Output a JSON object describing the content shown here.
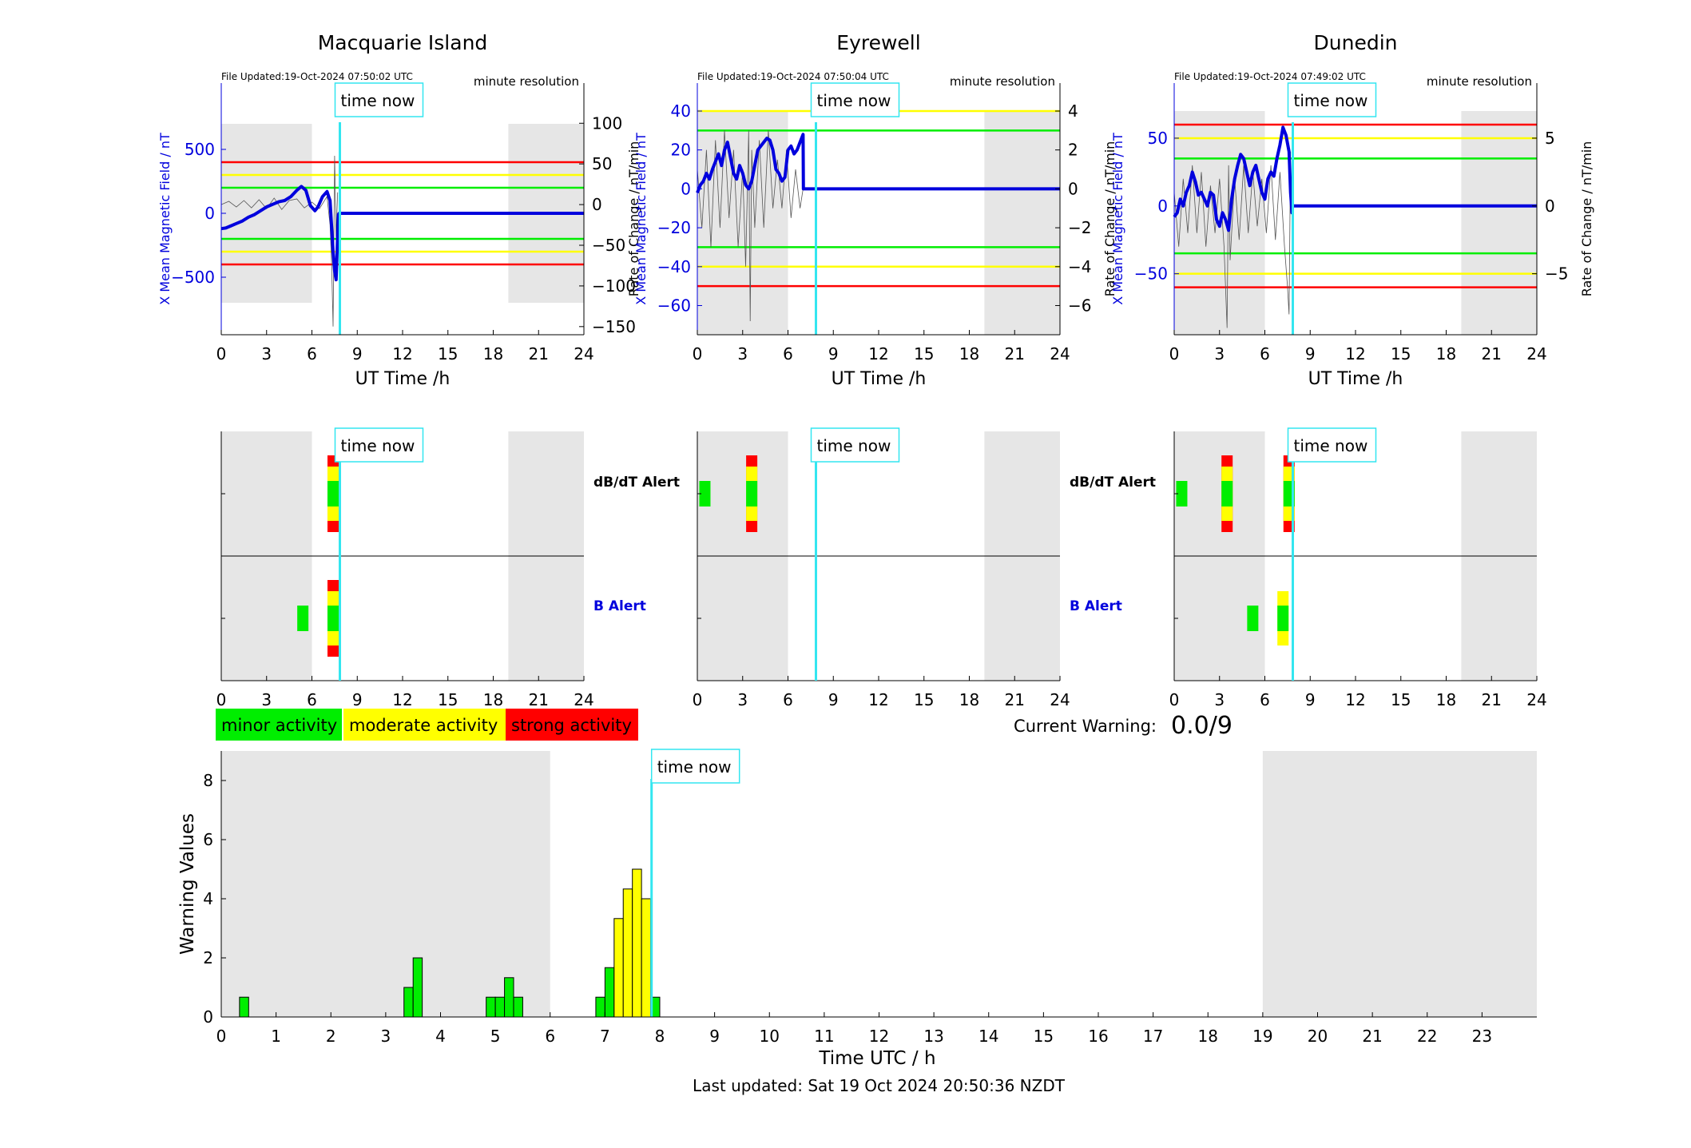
{
  "footer": "Last updated: Sat 19 Oct 2024 20:50:36 NZDT",
  "time_now_label": "time now",
  "time_now_hour": 7.85,
  "colors": {
    "minor": "#00ee00",
    "moderate": "#ffff00",
    "strong": "#ff0000",
    "bfield": "#0000dd",
    "timenow": "#33e6f0",
    "night": "#e6e6e6",
    "dbdt": "#555555"
  },
  "legend": {
    "minor": "minor activity",
    "moderate": "moderate activity",
    "strong": "strong activity"
  },
  "current_warning": {
    "label": "Current Warning:",
    "value": "0.0/9"
  },
  "alert_labels": {
    "dbdt": "dB/dT Alert",
    "b": "B Alert"
  },
  "chart_data": [
    {
      "type": "line",
      "station": "Macquarie Island",
      "file_updated": "File Updated:19-Oct-2024 07:50:02 UTC",
      "resolution": "minute resolution",
      "xlabel": "UT Time /h",
      "ylabel_left": "X Mean Magnetic Field / nT",
      "ylabel_right": "Rate of Change / nT/min",
      "xlim": [
        0,
        24
      ],
      "xticks": [
        0,
        3,
        6,
        9,
        12,
        15,
        18,
        21,
        24
      ],
      "ylim_left": [
        -950,
        800
      ],
      "yticks_left": [
        -500,
        0,
        500
      ],
      "ylim_right": [
        -160,
        115
      ],
      "yticks_right": [
        -150,
        -100,
        -50,
        0,
        50,
        100
      ],
      "night_bands": [
        [
          0,
          6
        ],
        [
          19,
          24
        ]
      ],
      "thresholds": [
        {
          "level": 400,
          "color": "red"
        },
        {
          "level": 300,
          "color": "yellow"
        },
        {
          "level": 200,
          "color": "green"
        },
        {
          "level": -200,
          "color": "green"
        },
        {
          "level": -300,
          "color": "yellow"
        },
        {
          "level": -400,
          "color": "red"
        }
      ],
      "b_field": {
        "x": [
          0,
          0.3,
          0.6,
          1.0,
          1.4,
          1.8,
          2.2,
          2.6,
          3.0,
          3.4,
          3.8,
          4.2,
          4.6,
          5.0,
          5.3,
          5.6,
          5.9,
          6.2,
          6.4,
          6.7,
          7.0,
          7.2,
          7.3,
          7.4,
          7.5,
          7.6,
          7.75,
          7.8,
          24
        ],
        "y": [
          -120,
          -115,
          -100,
          -80,
          -60,
          -30,
          -10,
          20,
          50,
          70,
          90,
          100,
          130,
          180,
          210,
          180,
          60,
          20,
          50,
          130,
          170,
          100,
          -100,
          -300,
          -450,
          -520,
          -10,
          0,
          0
        ]
      },
      "dbdt": {
        "x": [
          0,
          0.5,
          1,
          1.5,
          2,
          2.5,
          3,
          3.5,
          4,
          4.5,
          5,
          5.5,
          6,
          6.5,
          7,
          7.2,
          7.3,
          7.4,
          7.5,
          7.6,
          7.7
        ],
        "y": [
          0,
          4,
          -3,
          5,
          -4,
          6,
          -5,
          8,
          -6,
          5,
          7,
          -4,
          3,
          -5,
          10,
          -25,
          -70,
          -150,
          60,
          -40,
          15
        ]
      }
    },
    {
      "type": "line",
      "station": "Eyrewell",
      "file_updated": "File Updated:19-Oct-2024 07:50:04 UTC",
      "resolution": "minute resolution",
      "xlabel": "UT Time /h",
      "ylabel_left": "X Mean Magnetic Field / nT",
      "ylabel_right": "Rate of Change / nT/min",
      "xlim": [
        0,
        24
      ],
      "xticks": [
        0,
        3,
        6,
        9,
        12,
        15,
        18,
        21,
        24
      ],
      "ylim_left": [
        -75,
        40
      ],
      "yticks_left": [
        -60,
        -40,
        -20,
        0,
        20,
        40
      ],
      "ylim_right": [
        -7.5,
        4
      ],
      "yticks_right": [
        -6,
        -4,
        -2,
        0,
        2,
        4
      ],
      "night_bands": [
        [
          0,
          6
        ],
        [
          19,
          24
        ]
      ],
      "thresholds": [
        {
          "level": 40,
          "color": "yellow"
        },
        {
          "level": 30,
          "color": "green"
        },
        {
          "level": -30,
          "color": "green"
        },
        {
          "level": -40,
          "color": "yellow"
        },
        {
          "level": -50,
          "color": "red"
        }
      ],
      "b_field": {
        "x": [
          0,
          0.2,
          0.4,
          0.6,
          0.8,
          1.0,
          1.2,
          1.4,
          1.6,
          1.8,
          2.0,
          2.2,
          2.4,
          2.6,
          2.8,
          3.0,
          3.2,
          3.4,
          3.6,
          3.8,
          4.0,
          4.2,
          4.4,
          4.6,
          4.8,
          5.0,
          5.2,
          5.4,
          5.6,
          5.8,
          6.0,
          6.2,
          6.4,
          6.6,
          6.8,
          7.0,
          7.02,
          24
        ],
        "y": [
          -2,
          2,
          4,
          8,
          5,
          10,
          14,
          18,
          12,
          20,
          24,
          16,
          8,
          5,
          12,
          8,
          2,
          0,
          4,
          12,
          20,
          22,
          24,
          26,
          25,
          20,
          10,
          8,
          4,
          6,
          20,
          22,
          18,
          20,
          24,
          28,
          0,
          0
        ]
      },
      "dbdt": {
        "x": [
          0,
          0.3,
          0.6,
          0.9,
          1.2,
          1.5,
          1.8,
          2.1,
          2.4,
          2.7,
          3.0,
          3.2,
          3.4,
          3.5,
          3.6,
          3.8,
          4.1,
          4.4,
          4.7,
          5.0,
          5.3,
          5.6,
          5.9,
          6.2,
          6.5,
          6.8,
          7.0
        ],
        "y": [
          1,
          -2,
          2,
          -3,
          2.5,
          -2,
          3,
          -1.5,
          2,
          -3,
          1,
          -4,
          3,
          -6.8,
          2,
          -2,
          2.5,
          -2,
          3,
          -1,
          1.5,
          -1,
          2,
          -1.5,
          1,
          -1,
          0
        ]
      }
    },
    {
      "type": "line",
      "station": "Dunedin",
      "file_updated": "File Updated:19-Oct-2024 07:49:02 UTC",
      "resolution": "minute resolution",
      "xlabel": "UT Time /h",
      "ylabel_left": "X Mean Magnetic Field / nT",
      "ylabel_right": "Rate of Change / nT/min",
      "xlim": [
        0,
        24
      ],
      "xticks": [
        0,
        3,
        6,
        9,
        12,
        15,
        18,
        21,
        24
      ],
      "ylim_left": [
        -95,
        70
      ],
      "yticks_left": [
        -50,
        0,
        50
      ],
      "ylim_right": [
        -9.5,
        7
      ],
      "yticks_right": [
        -5,
        0,
        5
      ],
      "night_bands": [
        [
          0,
          6
        ],
        [
          19,
          24
        ]
      ],
      "thresholds": [
        {
          "level": 60,
          "color": "red"
        },
        {
          "level": 50,
          "color": "yellow"
        },
        {
          "level": 35,
          "color": "green"
        },
        {
          "level": -35,
          "color": "green"
        },
        {
          "level": -50,
          "color": "yellow"
        },
        {
          "level": -60,
          "color": "red"
        }
      ],
      "b_field": {
        "x": [
          0,
          0.2,
          0.4,
          0.6,
          0.8,
          1.0,
          1.2,
          1.4,
          1.6,
          1.8,
          2.0,
          2.2,
          2.4,
          2.6,
          2.8,
          3.0,
          3.2,
          3.4,
          3.6,
          3.8,
          4.0,
          4.2,
          4.4,
          4.6,
          4.8,
          5.0,
          5.2,
          5.4,
          5.6,
          5.8,
          6.0,
          6.2,
          6.4,
          6.6,
          6.8,
          7.0,
          7.2,
          7.4,
          7.6,
          7.7,
          7.8,
          7.82,
          24
        ],
        "y": [
          -8,
          -5,
          5,
          0,
          10,
          15,
          25,
          18,
          8,
          10,
          5,
          0,
          10,
          8,
          -10,
          -15,
          -5,
          -10,
          -18,
          5,
          20,
          30,
          38,
          35,
          25,
          15,
          25,
          30,
          20,
          10,
          5,
          20,
          25,
          22,
          35,
          45,
          58,
          52,
          40,
          10,
          -5,
          0,
          0
        ]
      },
      "dbdt": {
        "x": [
          0,
          0.3,
          0.6,
          0.9,
          1.2,
          1.5,
          1.8,
          2.1,
          2.4,
          2.7,
          3.0,
          3.3,
          3.5,
          3.6,
          3.7,
          4.0,
          4.3,
          4.6,
          4.9,
          5.2,
          5.5,
          5.8,
          6.1,
          6.4,
          6.7,
          7.0,
          7.3,
          7.5,
          7.6,
          7.7
        ],
        "y": [
          1,
          -3,
          2,
          -2,
          3,
          -2,
          2.5,
          -3,
          1.5,
          -2,
          2,
          -3,
          -9,
          3,
          -4,
          2,
          -2.5,
          3,
          -2,
          2.5,
          -1.5,
          2,
          -2,
          3,
          -2.5,
          2.5,
          -3,
          -6,
          -8,
          4
        ]
      }
    },
    {
      "type": "bar",
      "role": "alerts",
      "station": "Macquarie Island",
      "xlim": [
        0,
        24
      ],
      "xticks": [
        0,
        3,
        6,
        9,
        12,
        15,
        18,
        21,
        24
      ],
      "night_bands": [
        [
          0,
          6
        ],
        [
          19,
          24
        ]
      ],
      "dbdt_alerts": [
        {
          "hour": 7.4,
          "level": 3
        }
      ],
      "b_alerts": [
        {
          "hour": 5.4,
          "level": 1
        },
        {
          "hour": 7.4,
          "level": 3
        }
      ]
    },
    {
      "type": "bar",
      "role": "alerts",
      "station": "Eyrewell",
      "xlim": [
        0,
        24
      ],
      "xticks": [
        0,
        3,
        6,
        9,
        12,
        15,
        18,
        21,
        24
      ],
      "night_bands": [
        [
          0,
          6
        ],
        [
          19,
          24
        ]
      ],
      "dbdt_alerts": [
        {
          "hour": 0.5,
          "level": 1
        },
        {
          "hour": 3.6,
          "level": 3
        }
      ],
      "b_alerts": []
    },
    {
      "type": "bar",
      "role": "alerts",
      "station": "Dunedin",
      "xlim": [
        0,
        24
      ],
      "xticks": [
        0,
        3,
        6,
        9,
        12,
        15,
        18,
        21,
        24
      ],
      "night_bands": [
        [
          0,
          6
        ],
        [
          19,
          24
        ]
      ],
      "dbdt_alerts": [
        {
          "hour": 0.5,
          "level": 1
        },
        {
          "hour": 3.5,
          "level": 3
        },
        {
          "hour": 7.6,
          "level": 3
        }
      ],
      "b_alerts": [
        {
          "hour": 5.2,
          "level": 1
        },
        {
          "hour": 7.2,
          "level": 2
        }
      ]
    },
    {
      "type": "bar",
      "role": "warning",
      "xlabel": "Time UTC / h",
      "ylabel": "Warning Values",
      "xlim": [
        0,
        24
      ],
      "xticks": [
        0,
        1,
        2,
        3,
        4,
        5,
        6,
        7,
        8,
        9,
        10,
        11,
        12,
        13,
        14,
        15,
        16,
        17,
        18,
        19,
        20,
        21,
        22,
        23
      ],
      "ylim": [
        0,
        9
      ],
      "yticks": [
        0,
        2,
        4,
        6,
        8
      ],
      "night_bands": [
        [
          0,
          6
        ],
        [
          19,
          24
        ]
      ],
      "bar_width_h": 0.1667,
      "bars": [
        {
          "hour": 0.333,
          "value": 0.67,
          "color": "green"
        },
        {
          "hour": 3.333,
          "value": 1.0,
          "color": "green"
        },
        {
          "hour": 3.5,
          "value": 2.0,
          "color": "green"
        },
        {
          "hour": 4.833,
          "value": 0.67,
          "color": "green"
        },
        {
          "hour": 5.0,
          "value": 0.67,
          "color": "green"
        },
        {
          "hour": 5.167,
          "value": 1.33,
          "color": "green"
        },
        {
          "hour": 5.333,
          "value": 0.67,
          "color": "green"
        },
        {
          "hour": 6.833,
          "value": 0.67,
          "color": "green"
        },
        {
          "hour": 7.0,
          "value": 1.67,
          "color": "green"
        },
        {
          "hour": 7.167,
          "value": 3.33,
          "color": "yellow"
        },
        {
          "hour": 7.333,
          "value": 4.33,
          "color": "yellow"
        },
        {
          "hour": 7.5,
          "value": 5.0,
          "color": "yellow"
        },
        {
          "hour": 7.667,
          "value": 4.0,
          "color": "yellow"
        },
        {
          "hour": 7.833,
          "value": 0.67,
          "color": "green"
        }
      ]
    }
  ]
}
